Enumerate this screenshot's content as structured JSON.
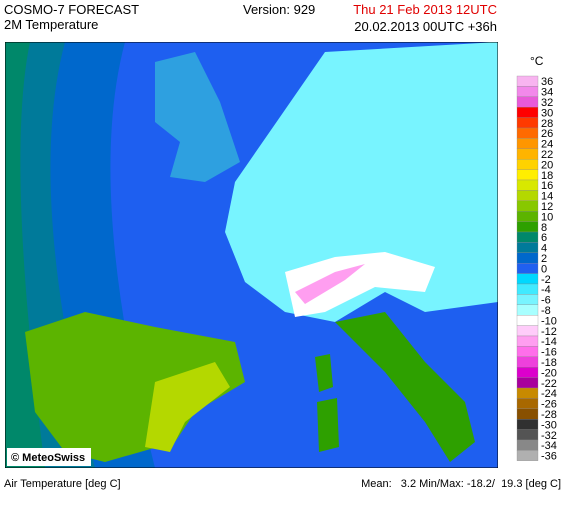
{
  "header": {
    "title": "COSMO-7 FORECAST",
    "subtitle": "2M Temperature",
    "version": "Version: 929",
    "valid_time": "Thu 21 Feb 2013 12UTC",
    "run_time": "20.02.2013 00UTC +36h"
  },
  "legend": {
    "unit": "°C",
    "items": [
      {
        "value": 36,
        "color": "#f8b4f0"
      },
      {
        "value": 34,
        "color": "#f288ea"
      },
      {
        "value": 32,
        "color": "#e85ad8"
      },
      {
        "value": 30,
        "color": "#ff0000"
      },
      {
        "value": 28,
        "color": "#ff3a00"
      },
      {
        "value": 26,
        "color": "#ff6a00"
      },
      {
        "value": 24,
        "color": "#ff9600"
      },
      {
        "value": 22,
        "color": "#ffb400"
      },
      {
        "value": 20,
        "color": "#ffd200"
      },
      {
        "value": 18,
        "color": "#ffee00"
      },
      {
        "value": 16,
        "color": "#d8e800"
      },
      {
        "value": 14,
        "color": "#b4d800"
      },
      {
        "value": 12,
        "color": "#88c800"
      },
      {
        "value": 10,
        "color": "#5cb400"
      },
      {
        "value": 8,
        "color": "#2ea000"
      },
      {
        "value": 6,
        "color": "#00886a"
      },
      {
        "value": 4,
        "color": "#007a9a"
      },
      {
        "value": 2,
        "color": "#0068cc"
      },
      {
        "value": 0,
        "color": "#2060f0"
      },
      {
        "value": -2,
        "color": "#00d8ff"
      },
      {
        "value": -4,
        "color": "#40eaff"
      },
      {
        "value": -6,
        "color": "#78f4ff"
      },
      {
        "value": -8,
        "color": "#a8ffff"
      },
      {
        "value": -10,
        "color": "#ffffff"
      },
      {
        "value": -12,
        "color": "#ffccfa"
      },
      {
        "value": -14,
        "color": "#ff9ef0"
      },
      {
        "value": -16,
        "color": "#ff6eea"
      },
      {
        "value": -18,
        "color": "#ee40dc"
      },
      {
        "value": -20,
        "color": "#dc00cc"
      },
      {
        "value": -22,
        "color": "#a8009c"
      },
      {
        "value": -24,
        "color": "#c88a00"
      },
      {
        "value": -26,
        "color": "#a86800"
      },
      {
        "value": -28,
        "color": "#885000"
      },
      {
        "value": -30,
        "color": "#303030"
      },
      {
        "value": -32,
        "color": "#545454"
      },
      {
        "value": -34,
        "color": "#888888"
      },
      {
        "value": -36,
        "color": "#b0b0b0"
      }
    ]
  },
  "map": {
    "credit": "© MeteoSwiss"
  },
  "footer": {
    "parameter": "Air Temperature [deg C]",
    "stats": "Mean:   3.2 Min/Max: -18.2/  19.3 [deg C]"
  }
}
